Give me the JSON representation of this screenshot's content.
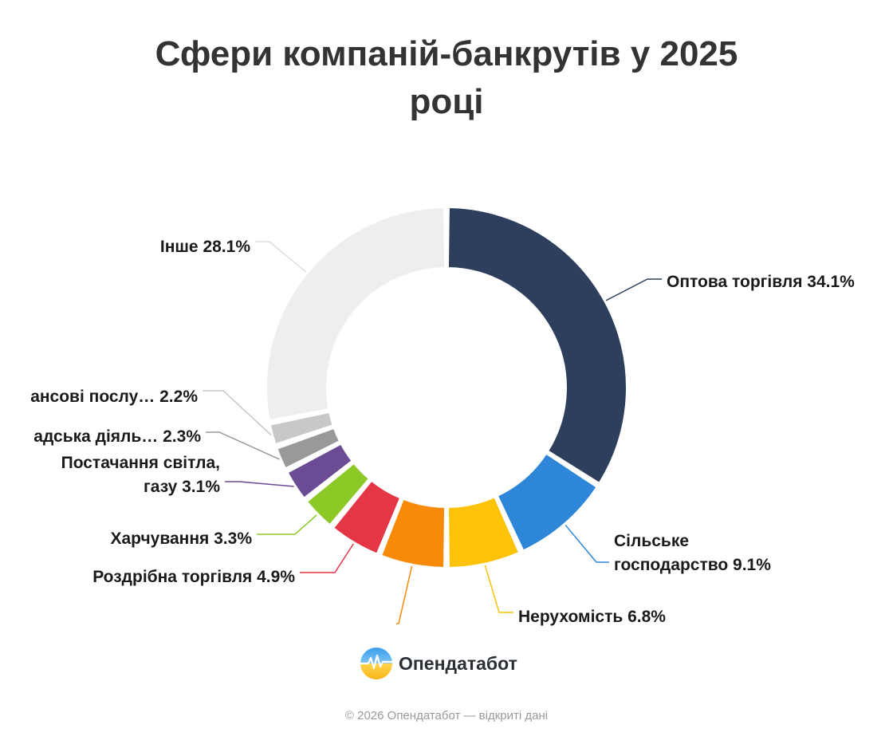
{
  "chart_data": {
    "type": "pie",
    "title": "Сфери компаній-банкрутів у 2025 році",
    "slices": [
      {
        "label": "Оптова торгівля 34.1%",
        "value": 34.1,
        "color": "#2e3f5e"
      },
      {
        "label": "Сільське господарство 9.1%",
        "value": 9.1,
        "color": "#2e86d8"
      },
      {
        "label": "Нерухомість 6.8%",
        "value": 6.8,
        "color": "#fcc309"
      },
      {
        "label": "",
        "value": 6.1,
        "color": "#f98a07"
      },
      {
        "label": "Роздрібна торгівля 4.9%",
        "value": 4.9,
        "color": "#e53646"
      },
      {
        "label": "Харчування 3.3%",
        "value": 3.3,
        "color": "#8cc927"
      },
      {
        "label": "Постачання світла, газу 3.1%",
        "value": 3.1,
        "color": "#6b4b94"
      },
      {
        "label": "адська діяль… 2.3%",
        "value": 2.3,
        "color": "#999999"
      },
      {
        "label": "ансові послу… 2.2%",
        "value": 2.2,
        "color": "#c8c8c8"
      },
      {
        "label": "Інше 28.1%",
        "value": 28.1,
        "color": "#eeeeee"
      }
    ]
  },
  "branding": {
    "logo_text": "Опендатабот",
    "copyright": "© 2026 Опендатабот — відкриті дані"
  }
}
